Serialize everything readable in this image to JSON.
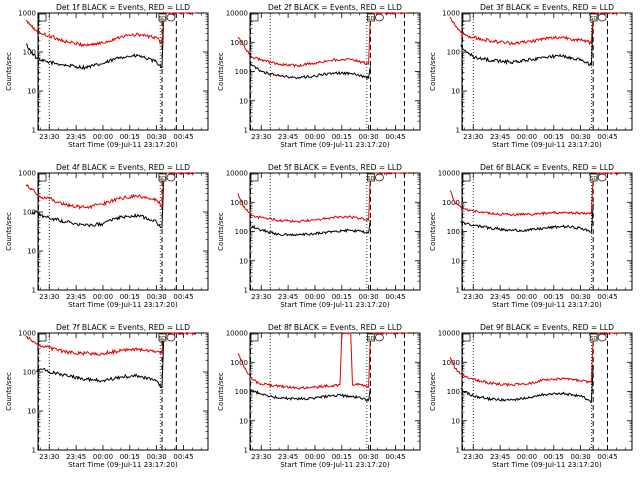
{
  "figure": {
    "colors": {
      "events": "#000000",
      "lld": "#e00000",
      "background": "#ffffff"
    }
  },
  "shared": {
    "ylabel": "Counts/sec",
    "xlabel": "Start Time (09-Jul-11 23:17:20)",
    "xticks": [
      "23:30",
      "23:45",
      "00:00",
      "00:15",
      "00:30",
      "00:45"
    ],
    "yticks": [
      "1",
      "10",
      "100",
      "1000",
      "10000"
    ],
    "marker": "SD"
  },
  "chart_data": [
    {
      "type": "line",
      "panel": 1,
      "title": "Det 1f BLACK = Events, RED = LLD",
      "xlabel": "Start Time (09-Jul-11 23:17:20)",
      "ylabel": "Counts/sec",
      "xlim": [
        "23:17",
        "00:52"
      ],
      "ylim": [
        1,
        1000
      ],
      "log_y": true,
      "yticks": [
        "1",
        "10",
        "100",
        "1000"
      ],
      "yticks_vals": [
        1,
        10,
        100,
        1000
      ],
      "dashed_x": [
        "23:24",
        "00:33",
        "00:41"
      ],
      "dotted_x": [
        "23:30",
        "00:32"
      ],
      "series": [
        {
          "color": "#000000",
          "x": [
            "23:17",
            "23:20",
            "23:23",
            "23:25",
            "23:30",
            "23:40",
            "23:50",
            "00:00",
            "00:10",
            "00:20",
            "00:30",
            "00:33",
            "00:34"
          ],
          "values": [
            160,
            100,
            70,
            60,
            55,
            45,
            40,
            50,
            75,
            80,
            55,
            40,
            900
          ]
        },
        {
          "color": "#e00000",
          "x": [
            "23:17",
            "23:20",
            "23:23",
            "23:25",
            "23:30",
            "23:40",
            "23:50",
            "00:00",
            "00:10",
            "00:20",
            "00:30",
            "00:33",
            "00:34",
            "00:36",
            "00:52"
          ],
          "values": [
            650,
            450,
            350,
            300,
            260,
            180,
            150,
            170,
            250,
            280,
            230,
            160,
            1000,
            1000,
            1000
          ]
        }
      ]
    },
    {
      "type": "line",
      "panel": 2,
      "title": "Det 2f BLACK = Events, RED = LLD",
      "xlabel": "Start Time (09-Jul-11 23:17:20)",
      "ylabel": "Counts/sec",
      "xlim": [
        "23:17",
        "00:52"
      ],
      "ylim": [
        1,
        10000
      ],
      "log_y": true,
      "yticks": [
        "1",
        "10",
        "100",
        "1000",
        "10000"
      ],
      "yticks_vals": [
        1,
        10,
        100,
        1000,
        10000
      ],
      "dashed_x": [
        "23:24",
        "00:31",
        "00:50"
      ],
      "dotted_x": [
        "23:35",
        "00:29"
      ],
      "series": [
        {
          "color": "#000000",
          "x": [
            "23:24",
            "23:25",
            "23:30",
            "23:40",
            "23:50",
            "00:00",
            "00:10",
            "00:20",
            "00:30",
            "00:31"
          ],
          "values": [
            180,
            160,
            100,
            70,
            60,
            70,
            90,
            85,
            60,
            150
          ]
        },
        {
          "color": "#e00000",
          "x": [
            "23:17",
            "23:20",
            "23:24",
            "23:25",
            "23:30",
            "23:40",
            "23:50",
            "00:00",
            "00:10",
            "00:20",
            "00:30",
            "00:31",
            "00:33",
            "00:52"
          ],
          "values": [
            1500,
            800,
            350,
            300,
            250,
            180,
            160,
            190,
            250,
            260,
            180,
            9000,
            10000,
            10000
          ]
        }
      ]
    },
    {
      "type": "line",
      "panel": 3,
      "title": "Det 3f BLACK = Events, RED = LLD",
      "xlabel": "Start Time (09-Jul-11 23:17:20)",
      "ylabel": "Counts/sec",
      "xlim": [
        "23:17",
        "00:52"
      ],
      "ylim": [
        1,
        1000
      ],
      "log_y": true,
      "yticks": [
        "1",
        "10",
        "100",
        "1000"
      ],
      "yticks_vals": [
        1,
        10,
        100,
        1000
      ],
      "dashed_x": [
        "23:24",
        "00:37",
        "00:45"
      ],
      "dotted_x": [
        "23:30",
        "00:36"
      ],
      "series": [
        {
          "color": "#000000",
          "x": [
            "23:23",
            "23:25",
            "23:30",
            "23:40",
            "23:50",
            "00:00",
            "00:10",
            "00:20",
            "00:30",
            "00:36",
            "00:37"
          ],
          "values": [
            150,
            110,
            75,
            60,
            55,
            60,
            75,
            80,
            65,
            45,
            900
          ]
        },
        {
          "color": "#e00000",
          "x": [
            "23:17",
            "23:20",
            "23:23",
            "23:25",
            "23:30",
            "23:40",
            "23:50",
            "00:00",
            "00:10",
            "00:20",
            "00:30",
            "00:36",
            "00:37",
            "00:40",
            "00:52"
          ],
          "values": [
            800,
            450,
            320,
            280,
            240,
            190,
            170,
            180,
            220,
            240,
            200,
            170,
            1000,
            1000,
            1000
          ]
        }
      ]
    },
    {
      "type": "line",
      "panel": 4,
      "title": "Det 4f BLACK = Events, RED = LLD",
      "xlabel": "Start Time (09-Jul-11 23:17:20)",
      "ylabel": "Counts/sec",
      "xlim": [
        "23:17",
        "00:52"
      ],
      "ylim": [
        1,
        1000
      ],
      "log_y": true,
      "yticks": [
        "1",
        "10",
        "100",
        "1000"
      ],
      "yticks_vals": [
        1,
        10,
        100,
        1000
      ],
      "dashed_x": [
        "23:24",
        "00:33",
        "00:41"
      ],
      "dotted_x": [
        "23:30",
        "00:32"
      ],
      "series": [
        {
          "color": "#000000",
          "x": [
            "23:20",
            "23:23",
            "23:25",
            "23:30",
            "23:40",
            "23:50",
            "00:00",
            "00:10",
            "00:20",
            "00:30",
            "00:33",
            "00:34"
          ],
          "values": [
            90,
            100,
            80,
            70,
            55,
            45,
            50,
            75,
            80,
            55,
            40,
            800
          ]
        },
        {
          "color": "#e00000",
          "x": [
            "23:17",
            "23:20",
            "23:23",
            "23:25",
            "23:30",
            "23:40",
            "23:50",
            "00:00",
            "00:10",
            "00:20",
            "00:30",
            "00:33",
            "00:34",
            "00:36",
            "00:52"
          ],
          "values": [
            500,
            400,
            280,
            250,
            220,
            150,
            130,
            160,
            230,
            260,
            200,
            140,
            1000,
            1000,
            1000
          ]
        }
      ]
    },
    {
      "type": "line",
      "panel": 5,
      "title": "Det 5f BLACK = Events, RED = LLD",
      "xlabel": "Start Time (09-Jul-11 23:17:20)",
      "ylabel": "Counts/sec",
      "xlim": [
        "23:17",
        "00:52"
      ],
      "ylim": [
        1,
        10000
      ],
      "log_y": true,
      "yticks": [
        "1",
        "10",
        "100",
        "1000",
        "10000"
      ],
      "yticks_vals": [
        1,
        10,
        100,
        1000,
        10000
      ],
      "dashed_x": [
        "23:24",
        "00:31",
        "00:50"
      ],
      "dotted_x": [
        "23:35",
        "00:29"
      ],
      "series": [
        {
          "color": "#000000",
          "x": [
            "23:24",
            "23:25",
            "23:30",
            "23:40",
            "23:50",
            "00:00",
            "00:10",
            "00:20",
            "00:30",
            "00:31"
          ],
          "values": [
            130,
            150,
            110,
            80,
            75,
            85,
            100,
            110,
            90,
            250
          ]
        },
        {
          "color": "#e00000",
          "x": [
            "23:17",
            "23:20",
            "23:24",
            "23:25",
            "23:30",
            "23:40",
            "23:50",
            "00:00",
            "00:10",
            "00:20",
            "00:30",
            "00:31",
            "00:33",
            "00:52"
          ],
          "values": [
            2000,
            700,
            420,
            350,
            300,
            240,
            220,
            250,
            300,
            320,
            250,
            9000,
            10000,
            10000
          ]
        }
      ]
    },
    {
      "type": "line",
      "panel": 6,
      "title": "Det 6f BLACK = Events, RED = LLD",
      "xlabel": "Start Time (09-Jul-11 23:17:20)",
      "ylabel": "Counts/sec",
      "xlim": [
        "23:17",
        "00:52"
      ],
      "ylim": [
        1,
        10000
      ],
      "log_y": true,
      "yticks": [
        "1",
        "10",
        "100",
        "1000",
        "10000"
      ],
      "yticks_vals": [
        1,
        10,
        100,
        1000,
        10000
      ],
      "dashed_x": [
        "23:24",
        "00:37",
        "00:45"
      ],
      "dotted_x": [
        "23:30",
        "00:36"
      ],
      "series": [
        {
          "color": "#000000",
          "x": [
            "23:23",
            "23:25",
            "23:30",
            "23:40",
            "23:50",
            "00:00",
            "00:10",
            "00:20",
            "00:30",
            "00:36",
            "00:37"
          ],
          "values": [
            220,
            200,
            160,
            130,
            110,
            110,
            130,
            150,
            130,
            95,
            900
          ]
        },
        {
          "color": "#e00000",
          "x": [
            "23:17",
            "23:20",
            "23:23",
            "23:25",
            "23:30",
            "23:40",
            "23:50",
            "00:00",
            "00:10",
            "00:20",
            "00:30",
            "00:36",
            "00:37",
            "00:40",
            "00:52"
          ],
          "values": [
            2500,
            900,
            700,
            600,
            500,
            400,
            380,
            380,
            420,
            450,
            420,
            400,
            9000,
            10000,
            10000
          ]
        }
      ]
    },
    {
      "type": "line",
      "panel": 7,
      "title": "Det 7f BLACK = Events, RED = LLD",
      "xlabel": "Start Time (09-Jul-11 23:17:20)",
      "ylabel": "Counts/sec",
      "xlim": [
        "23:17",
        "00:52"
      ],
      "ylim": [
        1,
        1000
      ],
      "log_y": true,
      "yticks": [
        "1",
        "10",
        "100",
        "1000"
      ],
      "yticks_vals": [
        1,
        10,
        100,
        1000
      ],
      "dashed_x": [
        "23:24",
        "00:33",
        "00:41"
      ],
      "dotted_x": [
        "23:30",
        "00:32"
      ],
      "series": [
        {
          "color": "#000000",
          "x": [
            "23:23",
            "23:25",
            "23:30",
            "23:40",
            "23:50",
            "00:00",
            "00:10",
            "00:20",
            "00:30",
            "00:33",
            "00:34"
          ],
          "values": [
            100,
            120,
            100,
            80,
            65,
            60,
            75,
            80,
            60,
            40,
            800
          ]
        },
        {
          "color": "#e00000",
          "x": [
            "23:17",
            "23:20",
            "23:23",
            "23:25",
            "23:30",
            "23:40",
            "23:50",
            "00:00",
            "00:10",
            "00:20",
            "00:30",
            "00:33",
            "00:34",
            "00:36",
            "00:52"
          ],
          "values": [
            800,
            650,
            520,
            480,
            420,
            320,
            300,
            300,
            350,
            380,
            330,
            300,
            1000,
            1000,
            1000
          ]
        }
      ]
    },
    {
      "type": "line",
      "panel": 8,
      "title": "Det 8f BLACK = Events, RED = LLD",
      "xlabel": "Start Time (09-Jul-11 23:17:20)",
      "ylabel": "Counts/sec",
      "xlim": [
        "23:17",
        "00:52"
      ],
      "ylim": [
        1,
        10000
      ],
      "log_y": true,
      "yticks": [
        "1",
        "10",
        "100",
        "1000",
        "10000"
      ],
      "yticks_vals": [
        1,
        10,
        100,
        1000,
        10000
      ],
      "dashed_x": [
        "23:24",
        "00:31",
        "00:50"
      ],
      "dotted_x": [
        "23:35",
        "00:29"
      ],
      "series": [
        {
          "color": "#000000",
          "x": [
            "23:24",
            "23:25",
            "23:30",
            "23:40",
            "23:50",
            "00:00",
            "00:10",
            "00:20",
            "00:30",
            "00:31"
          ],
          "values": [
            100,
            110,
            80,
            60,
            55,
            60,
            75,
            70,
            50,
            130
          ]
        },
        {
          "color": "#e00000",
          "x": [
            "23:17",
            "23:20",
            "23:24",
            "23:25",
            "23:30",
            "23:40",
            "23:50",
            "00:00",
            "00:10",
            "00:14",
            "00:15",
            "00:20",
            "00:21",
            "00:25",
            "00:30",
            "00:31",
            "00:33",
            "00:52"
          ],
          "values": [
            2000,
            800,
            300,
            250,
            180,
            150,
            130,
            140,
            160,
            170,
            10000,
            10000,
            170,
            180,
            140,
            9000,
            10000,
            10000
          ]
        }
      ]
    },
    {
      "type": "line",
      "panel": 9,
      "title": "Det 9f BLACK = Events, RED = LLD",
      "xlabel": "Start Time (09-Jul-11 23:17:20)",
      "ylabel": "Counts/sec",
      "xlim": [
        "23:17",
        "00:52"
      ],
      "ylim": [
        1,
        10000
      ],
      "log_y": true,
      "yticks": [
        "1",
        "10",
        "100",
        "1000",
        "10000"
      ],
      "yticks_vals": [
        1,
        10,
        100,
        1000,
        10000
      ],
      "dashed_x": [
        "23:24",
        "00:37",
        "00:45"
      ],
      "dotted_x": [
        "23:30",
        "00:36"
      ],
      "series": [
        {
          "color": "#000000",
          "x": [
            "23:23",
            "23:25",
            "23:30",
            "23:40",
            "23:50",
            "00:00",
            "00:10",
            "00:20",
            "00:30",
            "00:36",
            "00:37"
          ],
          "values": [
            130,
            100,
            70,
            55,
            50,
            60,
            80,
            85,
            70,
            45,
            800
          ]
        },
        {
          "color": "#e00000",
          "x": [
            "23:17",
            "23:20",
            "23:23",
            "23:25",
            "23:30",
            "23:40",
            "23:50",
            "00:00",
            "00:10",
            "00:20",
            "00:30",
            "00:36",
            "00:37",
            "00:40",
            "00:52"
          ],
          "values": [
            1500,
            600,
            400,
            330,
            260,
            190,
            170,
            180,
            250,
            280,
            230,
            200,
            9000,
            10000,
            10000
          ]
        }
      ]
    }
  ]
}
